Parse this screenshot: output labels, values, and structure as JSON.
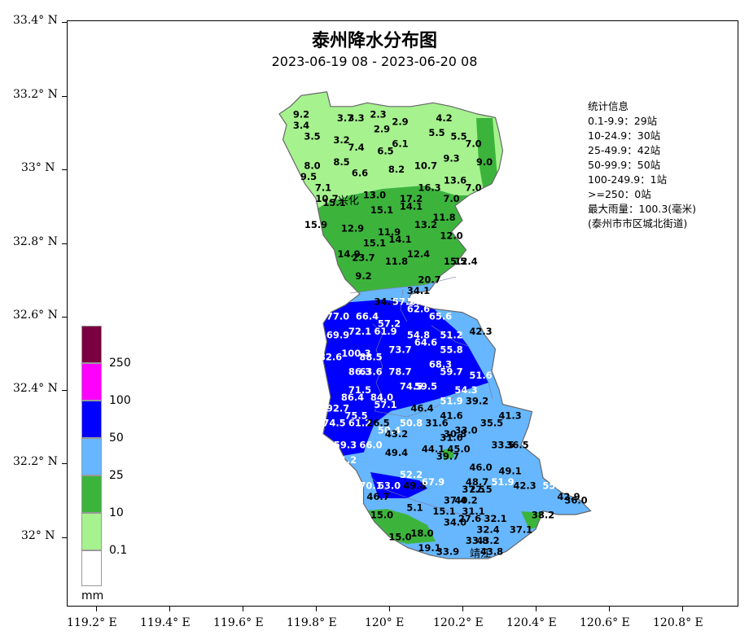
{
  "title": "泰州降水分布图",
  "subtitle": "2023-06-19 08 - 2023-06-20 08",
  "stats": {
    "heading": "统计信息",
    "lines": [
      "0.1-9.9：29站",
      "10-24.9：30站",
      "25-49.9：42站",
      "50-99.9：50站",
      "100-249.9：1站",
      ">=250：0站",
      "最大雨量：100.3(毫米)",
      "(泰州市市区城北街道)"
    ]
  },
  "axes": {
    "y_labels": [
      "33.4° N",
      "33.2° N",
      "33° N",
      "32.8° N",
      "32.6° N",
      "32.4° N",
      "32.2° N",
      "32° N"
    ],
    "x_labels": [
      "119.2° E",
      "119.4° E",
      "119.6° E",
      "119.8° E",
      "120° E",
      "120.2° E",
      "120.4° E",
      "120.6° E",
      "120.8° E"
    ]
  },
  "legend": {
    "unit": "mm",
    "items": [
      {
        "label": "250",
        "color": "#7a0040"
      },
      {
        "label": "100",
        "color": "#ff00ff"
      },
      {
        "label": "50",
        "color": "#0000ff"
      },
      {
        "label": "25",
        "color": "#66b7ff"
      },
      {
        "label": "10",
        "color": "#3cb43c"
      },
      {
        "label": "0.1",
        "color": "#a6f28f"
      },
      {
        "label": "",
        "color": "#ffffff"
      }
    ]
  },
  "places": [
    "兴化",
    "靖江"
  ],
  "colors": {
    "light_green": "#a6f28f",
    "green": "#3cb43c",
    "light_blue": "#66b7ff",
    "blue": "#0000ff"
  },
  "station_values": [
    [
      "9.2",
      119.76,
      33.14
    ],
    [
      "3.4",
      119.76,
      33.11
    ],
    [
      "3.7",
      119.88,
      33.13
    ],
    [
      "3.3",
      119.91,
      33.13
    ],
    [
      "2.3",
      119.97,
      33.14
    ],
    [
      "2.9",
      120.03,
      33.12
    ],
    [
      "2.9",
      119.98,
      33.1
    ],
    [
      "4.2",
      120.15,
      33.13
    ],
    [
      "3.5",
      119.79,
      33.08
    ],
    [
      "3.2",
      119.87,
      33.07
    ],
    [
      "7.4",
      119.91,
      33.05
    ],
    [
      "6.5",
      119.99,
      33.04
    ],
    [
      "6.1",
      120.03,
      33.06
    ],
    [
      "5.5",
      120.13,
      33.09
    ],
    [
      "5.5",
      120.19,
      33.08
    ],
    [
      "7.0",
      120.23,
      33.06
    ],
    [
      "8.0",
      119.79,
      33.0
    ],
    [
      "8.5",
      119.87,
      33.01
    ],
    [
      "6.6",
      119.92,
      32.98
    ],
    [
      "8.2",
      120.02,
      32.99
    ],
    [
      "10.7",
      120.1,
      33.0
    ],
    [
      "9.3",
      120.17,
      33.02
    ],
    [
      "9.0",
      120.26,
      33.01
    ],
    [
      "9.5",
      119.78,
      32.97
    ],
    [
      "7.1",
      119.82,
      32.94
    ],
    [
      "13.0",
      119.96,
      32.92
    ],
    [
      "16.3",
      120.11,
      32.94
    ],
    [
      "13.6",
      120.18,
      32.96
    ],
    [
      "7.0",
      120.23,
      32.94
    ],
    [
      "10.7",
      119.83,
      32.91
    ],
    [
      "15.1",
      119.85,
      32.9
    ],
    [
      "17.2",
      120.06,
      32.91
    ],
    [
      "7.0",
      120.17,
      32.91
    ],
    [
      "15.1",
      119.98,
      32.88
    ],
    [
      "14.1",
      120.06,
      32.89
    ],
    [
      "11.8",
      120.15,
      32.86
    ],
    [
      "15.9",
      119.8,
      32.84
    ],
    [
      "12.9",
      119.9,
      32.83
    ],
    [
      "13.2",
      120.1,
      32.84
    ],
    [
      "11.9",
      120.0,
      32.82
    ],
    [
      "14.1",
      120.03,
      32.8
    ],
    [
      "12.0",
      120.17,
      32.81
    ],
    [
      "15.1",
      119.96,
      32.79
    ],
    [
      "14.9",
      119.89,
      32.76
    ],
    [
      "23.7",
      119.93,
      32.75
    ],
    [
      "11.8",
      120.02,
      32.74
    ],
    [
      "12.4",
      120.08,
      32.76
    ],
    [
      "15.5",
      120.18,
      32.74
    ],
    [
      "12.4",
      120.21,
      32.74
    ],
    [
      "9.2",
      119.93,
      32.7
    ],
    [
      "20.7",
      120.11,
      32.69
    ],
    [
      "34.1",
      120.08,
      32.66
    ],
    [
      "34.7",
      119.99,
      32.63
    ],
    [
      "57.2",
      120.04,
      32.63
    ],
    [
      "54.8",
      120.08,
      32.63
    ],
    [
      "62.6",
      120.08,
      32.61
    ],
    [
      "77.0",
      119.86,
      32.59
    ],
    [
      "66.4",
      119.94,
      32.59
    ],
    [
      "65.6",
      120.14,
      32.59
    ],
    [
      "57.2",
      120.0,
      32.57
    ],
    [
      "69.9",
      119.86,
      32.54
    ],
    [
      "72.1",
      119.92,
      32.55
    ],
    [
      "61.9",
      119.99,
      32.55
    ],
    [
      "54.8",
      120.08,
      32.54
    ],
    [
      "51.2",
      120.17,
      32.54
    ],
    [
      "42.3",
      120.25,
      32.55
    ],
    [
      "64.6",
      120.1,
      32.52
    ],
    [
      "73.7",
      120.03,
      32.5
    ],
    [
      "55.8",
      120.17,
      32.5
    ],
    [
      "82.6",
      119.84,
      32.48
    ],
    [
      "100.3",
      119.91,
      32.49
    ],
    [
      "88.5",
      119.95,
      32.48
    ],
    [
      "68.3",
      120.14,
      32.46
    ],
    [
      "86.3",
      119.92,
      32.44
    ],
    [
      "63.6",
      119.95,
      32.44
    ],
    [
      "78.7",
      120.03,
      32.44
    ],
    [
      "59.7",
      120.17,
      32.44
    ],
    [
      "51.6",
      120.25,
      32.43
    ],
    [
      "74.5",
      120.06,
      32.4
    ],
    [
      "59.5",
      120.1,
      32.4
    ],
    [
      "54.3",
      120.21,
      32.39
    ],
    [
      "71.5",
      119.92,
      32.39
    ],
    [
      "86.4",
      119.9,
      32.37
    ],
    [
      "84.0",
      119.98,
      32.37
    ],
    [
      "39.2",
      120.24,
      32.36
    ],
    [
      "57.1",
      119.99,
      32.35
    ],
    [
      "46.4",
      120.09,
      32.34
    ],
    [
      "51.9",
      120.17,
      32.36
    ],
    [
      "92.7",
      119.86,
      32.34
    ],
    [
      "75.5",
      119.91,
      32.32
    ],
    [
      "41.6",
      120.17,
      32.32
    ],
    [
      "41.3",
      120.33,
      32.32
    ],
    [
      "74.5",
      119.85,
      32.3
    ],
    [
      "61.2",
      119.92,
      32.3
    ],
    [
      "26.5",
      119.97,
      32.3
    ],
    [
      "50.8",
      120.06,
      32.3
    ],
    [
      "31.6",
      120.13,
      32.3
    ],
    [
      "35.5",
      120.28,
      32.3
    ],
    [
      "50.4",
      120.0,
      32.28
    ],
    [
      "43.2",
      120.02,
      32.27
    ],
    [
      "33.0",
      120.21,
      32.28
    ],
    [
      "30.8",
      120.18,
      32.27
    ],
    [
      "31.6",
      120.17,
      32.26
    ],
    [
      "59.3",
      119.88,
      32.24
    ],
    [
      "66.0",
      119.95,
      32.24
    ],
    [
      "44.1",
      120.12,
      32.23
    ],
    [
      "45.0",
      120.19,
      32.23
    ],
    [
      "33.5",
      120.31,
      32.24
    ],
    [
      "36.5",
      120.35,
      32.24
    ],
    [
      "49.4",
      120.02,
      32.22
    ],
    [
      "39.7",
      120.16,
      32.21
    ],
    [
      "61.2",
      119.88,
      32.2
    ],
    [
      "46.0",
      120.25,
      32.18
    ],
    [
      "49.1",
      120.33,
      32.17
    ],
    [
      "52.2",
      120.06,
      32.16
    ],
    [
      "48.7",
      120.24,
      32.14
    ],
    [
      "70.1",
      119.95,
      32.13
    ],
    [
      "63.0",
      120.0,
      32.13
    ],
    [
      "49.8",
      120.07,
      32.13
    ],
    [
      "67.9",
      120.12,
      32.14
    ],
    [
      "37.5",
      120.23,
      32.12
    ],
    [
      "27.5",
      120.25,
      32.12
    ],
    [
      "51.9",
      120.31,
      32.14
    ],
    [
      "42.3",
      120.37,
      32.13
    ],
    [
      "55.9",
      120.45,
      32.13
    ],
    [
      "46.7",
      119.97,
      32.1
    ],
    [
      "37.4",
      120.18,
      32.09
    ],
    [
      "40.2",
      120.21,
      32.09
    ],
    [
      "42.9",
      120.49,
      32.1
    ],
    [
      "36.0",
      120.51,
      32.09
    ],
    [
      "5.1",
      120.07,
      32.07
    ],
    [
      "15.1",
      120.15,
      32.06
    ],
    [
      "31.1",
      120.23,
      32.06
    ],
    [
      "15.0",
      119.98,
      32.05
    ],
    [
      "27.6",
      120.22,
      32.04
    ],
    [
      "32.1",
      120.29,
      32.04
    ],
    [
      "38.2",
      120.42,
      32.05
    ],
    [
      "34.0",
      120.18,
      32.03
    ],
    [
      "32.4",
      120.27,
      32.01
    ],
    [
      "37.1",
      120.36,
      32.01
    ],
    [
      "15.0",
      120.03,
      31.99
    ],
    [
      "18.0",
      120.09,
      32.0
    ],
    [
      "33.8",
      120.24,
      31.98
    ],
    [
      "43.2",
      120.27,
      31.98
    ],
    [
      "19.1",
      120.11,
      31.96
    ],
    [
      "33.9",
      120.16,
      31.95
    ],
    [
      "43.8",
      120.28,
      31.95
    ]
  ]
}
